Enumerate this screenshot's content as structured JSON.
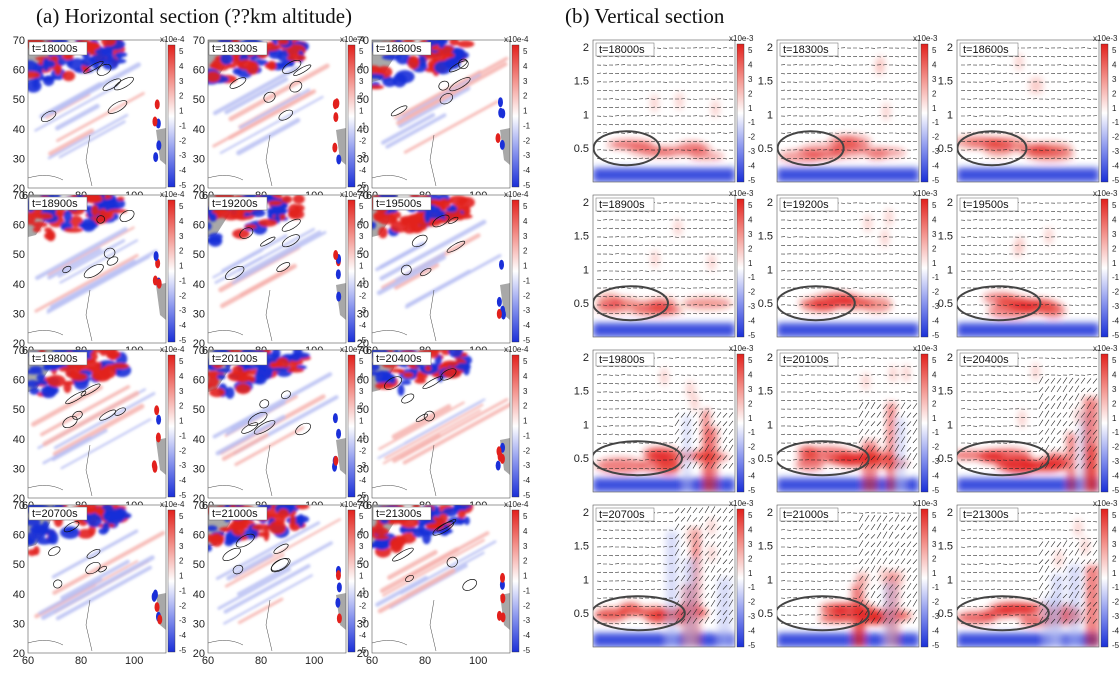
{
  "headings": {
    "a": "(a) Horizontal section (??km altitude)",
    "b": "(b) Vertical section"
  },
  "chart_data": [
    {
      "type": "heatmap",
      "title": "(a) Horizontal section (??km altitude)",
      "grid": {
        "rows": 4,
        "cols": 3
      },
      "panels": [
        "t=18000s",
        "t=18300s",
        "t=18600s",
        "t=18900s",
        "t=19200s",
        "t=19500s",
        "t=19800s",
        "t=20100s",
        "t=20400s",
        "t=20700s",
        "t=21000s",
        "t=21300s"
      ],
      "x_ticks": [
        "60",
        "80",
        "100"
      ],
      "y_ticks": [
        "20",
        "30",
        "40",
        "50",
        "60",
        "70"
      ],
      "xlim": [
        60,
        112
      ],
      "ylim": [
        20,
        70
      ],
      "colorbar": {
        "label": "x10e-4",
        "ticks": [
          "5",
          "4",
          "3",
          "2",
          "1",
          "-1",
          "-2",
          "-3",
          "-4",
          "-5"
        ],
        "range": [
          -5,
          5
        ],
        "colors": [
          "#1a2fd8",
          "#ffffff",
          "#e2201c"
        ]
      },
      "land_color": "#a8a8a8"
    },
    {
      "type": "heatmap",
      "title": "(b) Vertical section",
      "grid": {
        "rows": 4,
        "cols": 3
      },
      "panels": [
        "t=18000s",
        "t=18300s",
        "t=18600s",
        "t=18900s",
        "t=19200s",
        "t=19500s",
        "t=19800s",
        "t=20100s",
        "t=20400s",
        "t=20700s",
        "t=21000s",
        "t=21300s"
      ],
      "y_ticks": [
        "0.5",
        "1",
        "1.5",
        "2"
      ],
      "ylim": [
        0,
        2.1
      ],
      "colorbar": {
        "label": "x10e-3",
        "ticks": [
          "5",
          "4",
          "3",
          "2",
          "1",
          "-1",
          "-2",
          "-3",
          "-4",
          "-5"
        ],
        "range": [
          -5,
          5
        ],
        "colors": [
          "#1a2fd8",
          "#ffffff",
          "#e2201c"
        ]
      },
      "overlays": [
        "wind vectors",
        "ellipse highlight"
      ]
    }
  ]
}
